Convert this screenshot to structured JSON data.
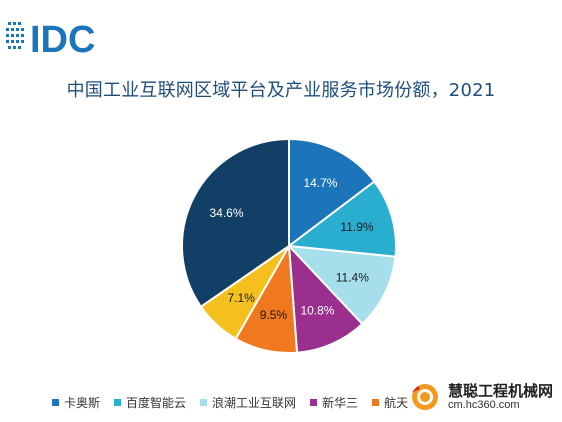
{
  "brand": {
    "logo_text": "IDC",
    "logo_color": "#1b75bb"
  },
  "chart_data": {
    "type": "pie",
    "title": "中国工业互联网区域平台及产业服务市场份额，2021",
    "start_angle_deg": 0,
    "direction": "clockwise",
    "series": [
      {
        "name": "卡奥斯",
        "value": 14.7,
        "label": "14.7%",
        "color": "#1c74bb"
      },
      {
        "name": "百度智能云",
        "value": 11.9,
        "label": "11.9%",
        "color": "#2aaecf"
      },
      {
        "name": "浪潮工业互联网",
        "value": 11.4,
        "label": "11.4%",
        "color": "#a6dfeb"
      },
      {
        "name": "新华三",
        "value": 10.8,
        "label": "10.8%",
        "color": "#9b2f8e"
      },
      {
        "name": "航天云网",
        "value": 9.5,
        "label": "9.5%",
        "color": "#f0781e"
      },
      {
        "name": "",
        "value": 7.1,
        "label": "7.1%",
        "color": "#f4c01e"
      },
      {
        "name": "",
        "value": 34.6,
        "label": "34.6%",
        "color": "#123f66"
      }
    ],
    "legend": {
      "position": "bottom",
      "visible_entries": [
        "卡奥斯",
        "百度智能云",
        "浪潮工业互联网",
        "新华三",
        "航天云网"
      ]
    }
  },
  "watermark": {
    "cn": "慧聪工程机械网",
    "url": "cm.hc360.com"
  }
}
